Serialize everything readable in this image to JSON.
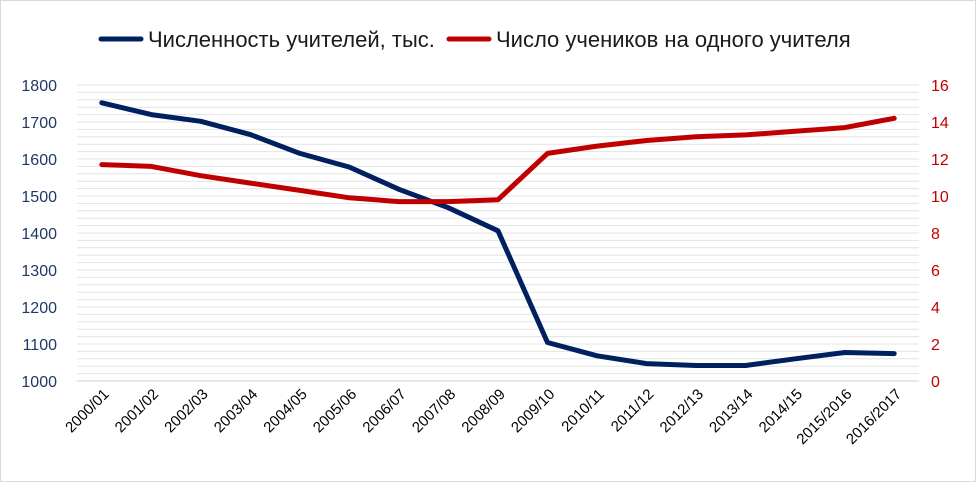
{
  "chart_data": {
    "type": "line",
    "categories": [
      "2000/01",
      "2001/02",
      "2002/03",
      "2003/04",
      "2004/05",
      "2005/06",
      "2006/07",
      "2007/08",
      "2008/09",
      "2009/10",
      "2010/11",
      "2011/12",
      "2012/13",
      "2013/14",
      "2014/15",
      "2015/2016",
      "2016/2017"
    ],
    "series": [
      {
        "name": "Численность учителей, тыс.",
        "axis": "left",
        "color": "#002060",
        "values": [
          1752,
          1720,
          1702,
          1666,
          1615,
          1578,
          1518,
          1468,
          1406,
          1104,
          1068,
          1047,
          1042,
          1042,
          1060,
          1077,
          1074
        ]
      },
      {
        "name": "Число учеников на одного учителя",
        "axis": "right",
        "color": "#c00000",
        "values": [
          11.7,
          11.6,
          11.1,
          10.7,
          10.3,
          9.9,
          9.7,
          9.7,
          9.8,
          12.3,
          12.7,
          13.0,
          13.2,
          13.3,
          13.5,
          13.7,
          14.2
        ]
      }
    ],
    "y_left": {
      "min": 1000,
      "max": 1800,
      "step": 100,
      "ticks": [
        "1000",
        "1100",
        "1200",
        "1300",
        "1400",
        "1500",
        "1600",
        "1700",
        "1800"
      ]
    },
    "y_right": {
      "min": 0,
      "max": 16,
      "step": 2,
      "ticks": [
        "0",
        "2",
        "4",
        "6",
        "8",
        "10",
        "12",
        "14",
        "16"
      ]
    },
    "legend_position": "top",
    "grid": true,
    "title": "",
    "xlabel": "",
    "ylabel": ""
  },
  "colors": {
    "teachers": "#002060",
    "ratio": "#c00000",
    "grid": "#e3e3e3",
    "left_ticks": "#1f3864",
    "right_ticks": "#c00000"
  }
}
